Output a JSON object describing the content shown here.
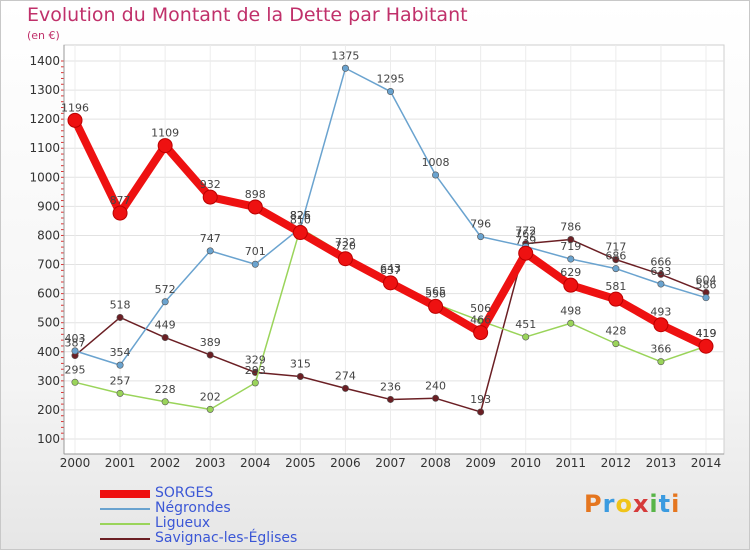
{
  "header": {
    "title": "Evolution du Montant de la Dette par Habitant",
    "subtitle": "(en €)"
  },
  "logo": {
    "text": "Proxiti",
    "colors": [
      "#e5761f",
      "#3b9be0",
      "#f0c419",
      "#d63b3b",
      "#58b548",
      "#3b9be0",
      "#e5761f"
    ]
  },
  "chart_data": {
    "type": "line",
    "title": "Evolution du Montant de la Dette par Habitant",
    "ylabel": "(en €)",
    "x": [
      "2000",
      "2001",
      "2002",
      "2003",
      "2004",
      "2005",
      "2006",
      "2007",
      "2008",
      "2009",
      "2010",
      "2011",
      "2012",
      "2013",
      "2014"
    ],
    "ylim": [
      100,
      1400
    ],
    "yticks": [
      100,
      200,
      300,
      400,
      500,
      600,
      700,
      800,
      900,
      1000,
      1100,
      1200,
      1300,
      1400
    ],
    "grid": true,
    "legend": "bottom-left",
    "series": [
      {
        "name": "SORGES",
        "color": "#ee1111",
        "width": 8,
        "values": [
          1196,
          877,
          1109,
          932,
          898,
          810,
          720,
          637,
          556,
          466,
          739,
          629,
          581,
          493,
          419
        ]
      },
      {
        "name": "Négrondes",
        "color": "#6aa3cf",
        "width": 1.5,
        "values": [
          403,
          354,
          572,
          747,
          701,
          826,
          1375,
          1295,
          1008,
          796,
          762,
          719,
          686,
          633,
          586
        ]
      },
      {
        "name": "Ligueux",
        "color": "#9ad45a",
        "width": 1.5,
        "values": [
          295,
          257,
          228,
          202,
          293,
          825,
          732,
          643,
          565,
          506,
          451,
          498,
          428,
          366,
          419
        ]
      },
      {
        "name": "Savignac-les-Églises",
        "color": "#6b1f24",
        "width": 1.5,
        "values": [
          387,
          518,
          449,
          389,
          329,
          315,
          274,
          236,
          240,
          193,
          772,
          786,
          717,
          666,
          604
        ]
      }
    ]
  }
}
